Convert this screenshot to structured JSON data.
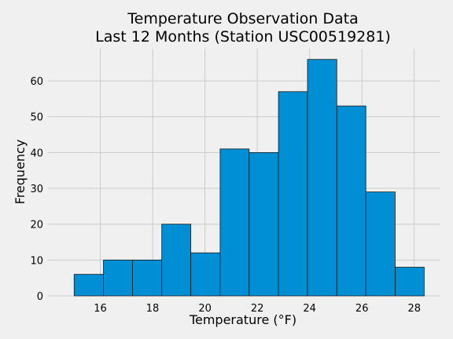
{
  "chart_data": {
    "type": "bar",
    "title": [
      "Temperature Observation Data",
      "Last 12 Months (Station USC00519281)"
    ],
    "xlabel": "Temperature (°F)",
    "ylabel": "Frequency",
    "bin_edges": [
      15.0,
      16.12,
      17.23,
      18.35,
      19.46,
      20.58,
      21.69,
      22.81,
      23.92,
      25.04,
      26.15,
      27.27,
      28.38
    ],
    "values": [
      6,
      10,
      10,
      20,
      12,
      41,
      40,
      57,
      66,
      53,
      29,
      8
    ],
    "xlim": [
      14.0,
      29.0
    ],
    "ylim": [
      0,
      69
    ],
    "xticks": [
      16,
      18,
      20,
      22,
      24,
      26,
      28
    ],
    "yticks": [
      0,
      10,
      20,
      30,
      40,
      50,
      60
    ],
    "grid": true,
    "bar_color": "#008fd5",
    "edge_color": "#1a1a1a",
    "background": "#f0f0f0",
    "grid_color": "#cbcbcb"
  }
}
